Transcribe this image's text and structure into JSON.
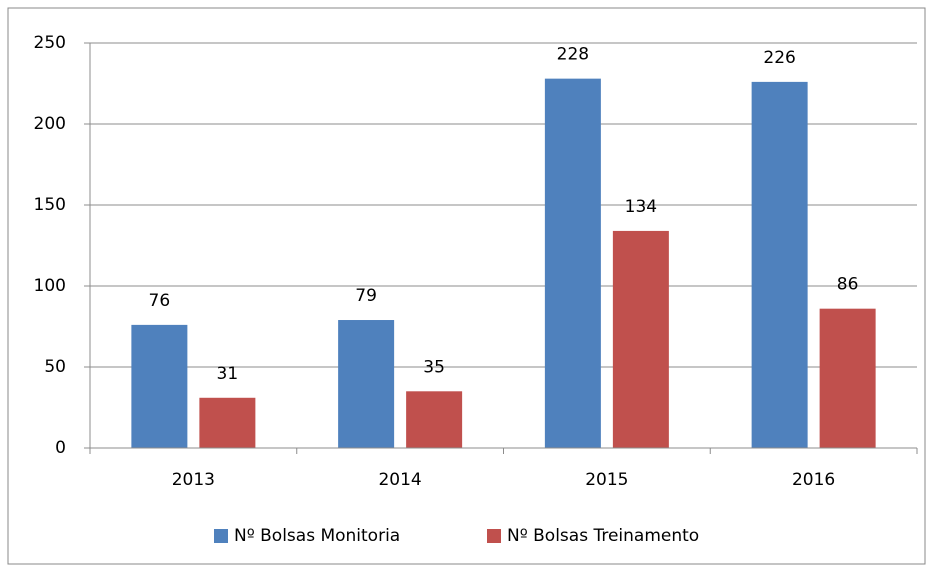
{
  "chart_data": {
    "type": "bar",
    "categories": [
      "2013",
      "2014",
      "2015",
      "2016"
    ],
    "series": [
      {
        "name": "Nº Bolsas Monitoria",
        "color": "#4f81bd",
        "values": [
          76,
          79,
          228,
          226
        ]
      },
      {
        "name": "Nº Bolsas Treinamento",
        "color": "#c0504d",
        "values": [
          31,
          35,
          134,
          86
        ]
      }
    ],
    "ylim": [
      0,
      250
    ],
    "yticks": [
      0,
      50,
      100,
      150,
      200,
      250
    ],
    "grid": true,
    "legend": "bottom"
  }
}
